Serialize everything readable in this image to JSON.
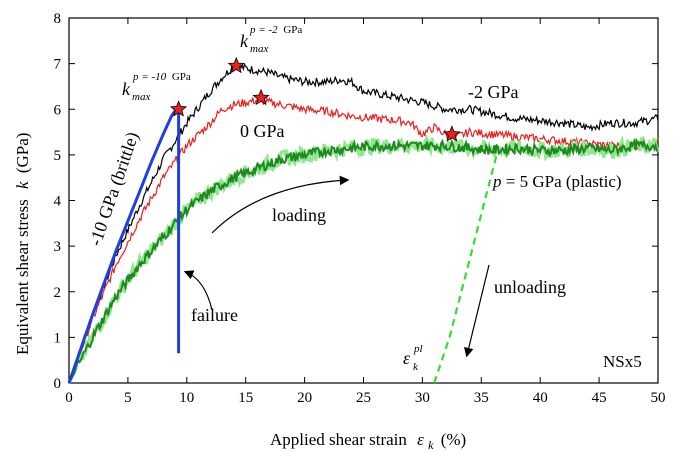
{
  "chart_data": {
    "type": "line",
    "xlabel": "Applied shear strain",
    "xlabel_symbol": "ε",
    "xlabel_subscript": "k",
    "xlabel_unit": "(%)",
    "ylabel": "Equivalent shear stress",
    "ylabel_symbol": "k",
    "ylabel_unit": "(GPa)",
    "xlim": [
      0,
      50
    ],
    "ylim": [
      0,
      8
    ],
    "xticks": [
      0,
      5,
      10,
      15,
      20,
      25,
      30,
      35,
      40,
      45,
      50
    ],
    "yticks": [
      0,
      1,
      2,
      3,
      4,
      5,
      6,
      7,
      8
    ],
    "grid": false,
    "series": [
      {
        "name": "-2 GPa",
        "color": "#000000",
        "points": [
          [
            0,
            0
          ],
          [
            2,
            1.5
          ],
          [
            4,
            2.8
          ],
          [
            6,
            3.9
          ],
          [
            8,
            4.9
          ],
          [
            10,
            5.7
          ],
          [
            12,
            6.4
          ],
          [
            13,
            6.7
          ],
          [
            14,
            6.95
          ],
          [
            15,
            6.9
          ],
          [
            16,
            6.85
          ],
          [
            17,
            6.8
          ],
          [
            18,
            6.7
          ],
          [
            20,
            6.6
          ],
          [
            22,
            6.6
          ],
          [
            23,
            6.65
          ],
          [
            24,
            6.6
          ],
          [
            25,
            6.4
          ],
          [
            27,
            6.3
          ],
          [
            29,
            6.2
          ],
          [
            30,
            6.15
          ],
          [
            32,
            6.0
          ],
          [
            34,
            6.0
          ],
          [
            36,
            5.9
          ],
          [
            38,
            5.8
          ],
          [
            40,
            5.75
          ],
          [
            42,
            5.7
          ],
          [
            44,
            5.6
          ],
          [
            46,
            5.7
          ],
          [
            48,
            5.7
          ],
          [
            50,
            5.8
          ]
        ]
      },
      {
        "name": "0 GPa",
        "color": "#e8201e",
        "points": [
          [
            0,
            0
          ],
          [
            2,
            1.4
          ],
          [
            4,
            2.6
          ],
          [
            6,
            3.6
          ],
          [
            8,
            4.5
          ],
          [
            10,
            5.2
          ],
          [
            12,
            5.7
          ],
          [
            13,
            6.0
          ],
          [
            14,
            6.1
          ],
          [
            15,
            6.15
          ],
          [
            16,
            6.2
          ],
          [
            18,
            6.1
          ],
          [
            20,
            6.0
          ],
          [
            22,
            5.95
          ],
          [
            24,
            5.85
          ],
          [
            26,
            5.8
          ],
          [
            28,
            5.75
          ],
          [
            29,
            5.7
          ],
          [
            30,
            5.45
          ],
          [
            31,
            5.6
          ],
          [
            32,
            5.45
          ],
          [
            33,
            5.4
          ],
          [
            34,
            5.5
          ],
          [
            36,
            5.45
          ],
          [
            38,
            5.4
          ],
          [
            40,
            5.35
          ],
          [
            42,
            5.3
          ],
          [
            44,
            5.25
          ],
          [
            46,
            5.2
          ],
          [
            48,
            5.2
          ],
          [
            50,
            5.3
          ]
        ]
      },
      {
        "name": "p = 5 GPa (plastic)",
        "color": "#1e8a1e",
        "points": [
          [
            0,
            0
          ],
          [
            2,
            1.0
          ],
          [
            4,
            1.9
          ],
          [
            6,
            2.6
          ],
          [
            8,
            3.2
          ],
          [
            10,
            3.8
          ],
          [
            12,
            4.2
          ],
          [
            14,
            4.5
          ],
          [
            16,
            4.7
          ],
          [
            18,
            4.9
          ],
          [
            20,
            5.0
          ],
          [
            22,
            5.1
          ],
          [
            24,
            5.15
          ],
          [
            26,
            5.2
          ],
          [
            28,
            5.2
          ],
          [
            30,
            5.2
          ],
          [
            32,
            5.2
          ],
          [
            34,
            5.15
          ],
          [
            36,
            5.1
          ],
          [
            38,
            5.15
          ],
          [
            40,
            5.1
          ],
          [
            42,
            5.1
          ],
          [
            44,
            5.15
          ],
          [
            46,
            5.1
          ],
          [
            48,
            5.2
          ],
          [
            50,
            5.2
          ]
        ]
      },
      {
        "name": "-10 GPa (brittle)",
        "color": "#1f3fe0",
        "points": [
          [
            0,
            0
          ],
          [
            1,
            0.75
          ],
          [
            2,
            1.5
          ],
          [
            3,
            2.2
          ],
          [
            4,
            2.9
          ],
          [
            5,
            3.55
          ],
          [
            6,
            4.2
          ],
          [
            7,
            4.85
          ],
          [
            8,
            5.45
          ],
          [
            8.7,
            5.85
          ],
          [
            9.1,
            6.0
          ],
          [
            9.3,
            5.95
          ],
          [
            9.3,
            0.65
          ]
        ]
      },
      {
        "name": "unloading",
        "color": "#33dd33",
        "dashed": true,
        "points": [
          [
            31,
            0
          ],
          [
            32.3,
            1
          ],
          [
            33.3,
            2
          ],
          [
            34.3,
            3
          ],
          [
            35.3,
            4
          ],
          [
            36.3,
            5
          ]
        ]
      }
    ],
    "markers": [
      {
        "label": "k_max^(p=-10 GPa)",
        "x": 9.3,
        "y": 6.0
      },
      {
        "label": "k_max^(p=-2 GPa)",
        "x": 14.2,
        "y": 6.95
      },
      {
        "label": "0 GPa max",
        "x": 16.3,
        "y": 6.25
      },
      {
        "label": "plastic",
        "x": 32.5,
        "y": 5.45
      }
    ]
  },
  "annotations": {
    "kmax_base": "k",
    "kmax_sub": "max",
    "kmax_neg10_sup": "p = -10",
    "kmax_neg10_unit": "GPa",
    "kmax_neg2_sup": "p = -2",
    "kmax_neg2_unit": "GPa",
    "label_neg2": "-2 GPa",
    "label_zero": "0 GPa",
    "label_brittle": "-10 GPa (brittle)",
    "label_plastic_p": "p",
    "label_plastic_rest": " = 5 GPa (plastic)",
    "label_loading": "loading",
    "label_failure": "failure",
    "label_unloading": "unloading",
    "label_eps": "ε",
    "label_eps_sup": "pl",
    "label_eps_sub": "k",
    "label_id": "NSx5"
  }
}
